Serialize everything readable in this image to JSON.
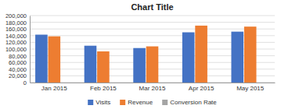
{
  "chart_data": {
    "type": "bar",
    "title": "Chart Title",
    "categories": [
      "Jan 2015",
      "Feb 2015",
      "Mar 2015",
      "Apr 2015",
      "May 2015"
    ],
    "series": [
      {
        "name": "Visits",
        "color": "#4472C4",
        "values": [
          143000,
          110000,
          103000,
          150000,
          152000
        ]
      },
      {
        "name": "Revenue",
        "color": "#ED7D31",
        "values": [
          138000,
          93000,
          108000,
          170000,
          167000
        ]
      },
      {
        "name": "Conversion Rate",
        "color": "#A5A5A5",
        "values": [
          0,
          0,
          0,
          0,
          0
        ]
      }
    ],
    "ylim": [
      0,
      200000
    ],
    "yticks": [
      0,
      {
        "value": 20000,
        "label": "20,000"
      },
      {
        "value": 40000,
        "label": "40,000"
      },
      {
        "value": 60000,
        "label": "60,000"
      },
      {
        "value": 80000,
        "label": "80,000"
      },
      {
        "value": 100000,
        "label": "100,000"
      },
      {
        "value": 120000,
        "label": "120,000"
      },
      {
        "value": 140000,
        "label": "140,000"
      },
      {
        "value": 160000,
        "label": "160,000"
      },
      {
        "value": 180000,
        "label": "180,000"
      },
      {
        "value": 200000,
        "label": "200,000"
      }
    ],
    "grid": true,
    "legend": "bottom"
  }
}
